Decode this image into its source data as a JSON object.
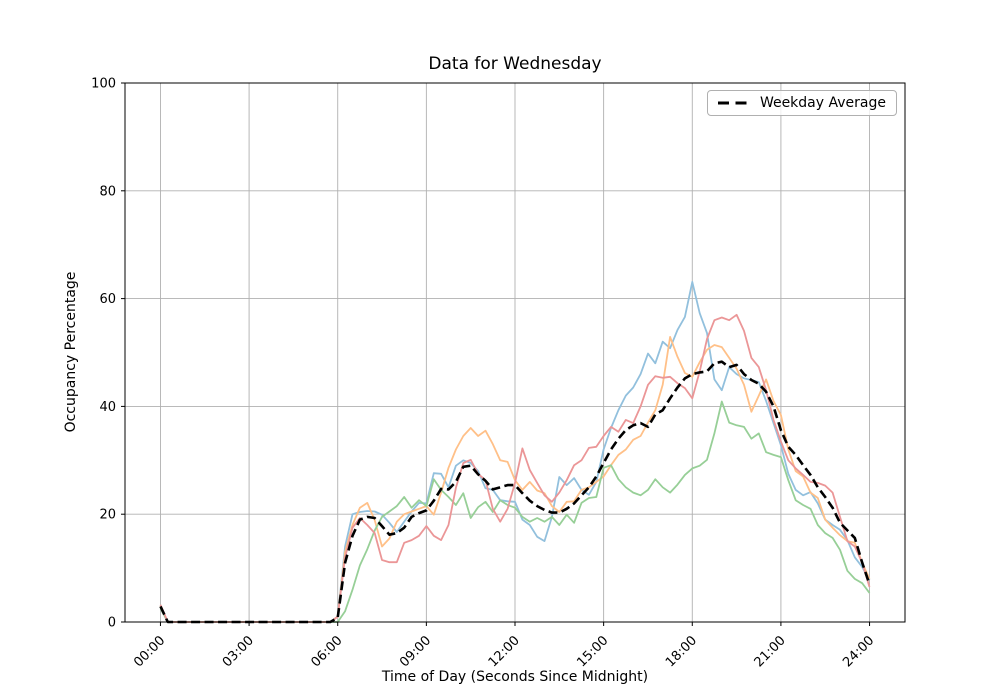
{
  "chart_data": {
    "type": "line",
    "title": "Data for Wednesday",
    "xlabel": "Time of Day (Seconds Since Midnight)",
    "ylabel": "Occupancy Percentage",
    "ylim": [
      0,
      100
    ],
    "y_ticks": [
      0,
      20,
      40,
      60,
      80,
      100
    ],
    "xlim_seconds": [
      -4320,
      90720
    ],
    "x_ticks": [
      {
        "seconds": 0,
        "label": "00:00"
      },
      {
        "seconds": 10800,
        "label": "03:00"
      },
      {
        "seconds": 21600,
        "label": "06:00"
      },
      {
        "seconds": 32400,
        "label": "09:00"
      },
      {
        "seconds": 43200,
        "label": "12:00"
      },
      {
        "seconds": 54000,
        "label": "15:00"
      },
      {
        "seconds": 64800,
        "label": "18:00"
      },
      {
        "seconds": 75600,
        "label": "21:00"
      },
      {
        "seconds": 86400,
        "label": "24:00"
      }
    ],
    "grid": true,
    "grid_color": "#b0b0b0",
    "spine_color": "#000000",
    "legend": {
      "position": "upper right",
      "entries": [
        {
          "label": "Weekday Average",
          "color": "#000000",
          "line_style": "dashed"
        }
      ]
    },
    "x_hours": [
      0,
      0.25,
      0.5,
      0.75,
      1,
      1.25,
      1.5,
      1.75,
      2,
      2.25,
      2.5,
      2.75,
      3,
      3.25,
      3.5,
      3.75,
      4,
      4.25,
      4.5,
      4.75,
      5,
      5.25,
      5.5,
      5.75,
      6,
      6.25,
      6.5,
      6.75,
      7,
      7.25,
      7.5,
      7.75,
      8,
      8.25,
      8.5,
      8.75,
      9,
      9.25,
      9.5,
      9.75,
      10,
      10.25,
      10.5,
      10.75,
      11,
      11.25,
      11.5,
      11.75,
      12,
      12.25,
      12.5,
      12.75,
      13,
      13.25,
      13.5,
      13.75,
      14,
      14.25,
      14.5,
      14.75,
      15,
      15.25,
      15.5,
      15.75,
      16,
      16.25,
      16.5,
      16.75,
      17,
      17.25,
      17.5,
      17.75,
      18,
      18.25,
      18.5,
      18.75,
      19,
      19.25,
      19.5,
      19.75,
      20,
      20.25,
      20.5,
      20.75,
      21,
      21.25,
      21.5,
      21.75,
      22,
      22.25,
      22.5,
      22.75,
      23,
      23.25,
      23.5,
      23.75,
      24
    ],
    "series": [
      {
        "name": "line-1",
        "color": "#92c0dd",
        "line_style": "solid",
        "line_width": 1.8,
        "values": [
          2.8,
          0,
          0,
          0,
          0,
          0,
          0,
          0,
          0,
          0,
          0,
          0,
          0,
          0,
          0,
          0,
          0,
          0,
          0,
          0,
          0,
          0,
          0,
          0,
          1,
          14,
          20,
          20.4,
          20.6,
          20.5,
          19.9,
          18.4,
          16.7,
          18.6,
          20.5,
          22.1,
          22,
          27.6,
          27.5,
          25,
          29,
          30,
          29.5,
          28,
          24.8,
          24.5,
          22.6,
          22.4,
          22.3,
          19,
          18,
          15.8,
          15,
          19.5,
          26.9,
          25.4,
          26.7,
          24.5,
          23.6,
          26,
          32,
          36,
          39.3,
          42,
          43.5,
          46,
          49.8,
          48,
          52,
          50.8,
          54.2,
          56.6,
          63.1,
          57.3,
          53.6,
          45,
          43,
          47.3,
          46,
          45.2,
          44.9,
          44.5,
          41,
          36.9,
          32.8,
          27.5,
          24.5,
          23.5,
          24.1,
          22,
          19,
          18,
          17.1,
          15.2,
          12,
          10.2,
          7.8
        ]
      },
      {
        "name": "line-2",
        "color": "#ffc088",
        "line_style": "solid",
        "line_width": 1.8,
        "values": [
          3,
          0,
          0,
          0,
          0,
          0,
          0,
          0,
          0,
          0,
          0,
          0,
          0,
          0,
          0,
          0,
          0,
          0,
          0,
          0,
          0,
          0,
          0,
          0,
          1,
          13,
          18,
          21.2,
          22.1,
          18.9,
          14,
          15.5,
          18.6,
          20,
          20.5,
          21,
          21.5,
          19.9,
          24,
          28.6,
          32,
          34.5,
          36,
          34.5,
          35.5,
          33,
          30,
          29.7,
          26.3,
          24.5,
          26,
          24.4,
          23.9,
          21.5,
          20.4,
          22.3,
          22.4,
          24.5,
          25,
          26,
          27,
          29.1,
          31,
          32,
          33.8,
          34.5,
          37,
          39.3,
          44,
          52.9,
          49.2,
          46.2,
          45.5,
          48.2,
          50.5,
          51.4,
          51,
          49,
          47,
          44,
          39,
          42,
          45,
          41,
          38.4,
          32,
          28,
          27,
          24,
          23,
          19,
          17.5,
          16.1,
          15,
          14.7,
          11,
          8
        ]
      },
      {
        "name": "line-3",
        "color": "#97cf97",
        "line_style": "solid",
        "line_width": 1.8,
        "values": [
          2.5,
          0,
          0,
          0,
          0,
          0,
          0,
          0,
          0,
          0,
          0,
          0,
          0,
          0,
          0,
          0,
          0,
          0,
          0,
          0,
          0,
          0,
          0,
          0,
          0,
          2,
          6,
          10.5,
          13.5,
          17,
          19.5,
          20.5,
          21.5,
          23.2,
          21.2,
          22.6,
          21.5,
          26.5,
          24.5,
          23.2,
          21.7,
          23.9,
          19.3,
          21.3,
          22.3,
          20.4,
          22.6,
          21.7,
          21.2,
          19.5,
          18.6,
          19.3,
          18.6,
          19.5,
          18,
          19.9,
          18.4,
          22.1,
          23,
          23.2,
          28.6,
          29.1,
          26.5,
          25,
          24,
          23.5,
          24.5,
          26.5,
          25,
          24,
          25.5,
          27.3,
          28.5,
          29,
          30.1,
          35,
          40.9,
          37,
          36.5,
          36.2,
          34,
          35,
          31.5,
          31,
          30.6,
          26.3,
          22.6,
          21.7,
          21,
          18,
          16.5,
          15.6,
          13.4,
          9.5,
          8,
          7.2,
          5.4
        ]
      },
      {
        "name": "line-4",
        "color": "#eb9697",
        "line_style": "solid",
        "line_width": 1.8,
        "values": [
          3.2,
          0,
          0,
          0,
          0,
          0,
          0,
          0,
          0,
          0,
          0,
          0,
          0,
          0,
          0,
          0,
          0,
          0,
          0,
          0,
          0,
          0,
          0,
          0,
          1,
          12,
          17.5,
          19.3,
          18,
          16.5,
          11.5,
          11.1,
          11.1,
          14.7,
          15.2,
          16,
          17.8,
          16,
          15.2,
          18,
          24.9,
          29.5,
          30.1,
          27.5,
          26.3,
          21,
          18.6,
          21,
          25.8,
          32.2,
          28.2,
          25.8,
          23.5,
          22.3,
          24,
          26.3,
          29.1,
          30,
          32.3,
          32.5,
          34.5,
          36.2,
          35.3,
          37.5,
          36.9,
          40,
          44,
          45.6,
          45.3,
          45.5,
          44.3,
          43.4,
          41.5,
          46.5,
          52.5,
          56,
          56.5,
          56,
          57,
          54,
          49,
          47.3,
          43,
          37.5,
          33.5,
          30,
          28.5,
          27.3,
          26,
          25.8,
          25.3,
          24,
          19.5,
          15,
          14,
          11,
          6.5
        ]
      },
      {
        "name": "Weekday Average",
        "color": "#000000",
        "line_style": "dashed",
        "line_width": 2.6,
        "values": [
          2.9,
          0,
          0,
          0,
          0,
          0,
          0,
          0,
          0,
          0,
          0,
          0,
          0,
          0,
          0,
          0,
          0,
          0,
          0,
          0,
          0,
          0,
          0,
          0,
          0.8,
          11,
          16,
          19,
          19.5,
          19.3,
          17.8,
          16.2,
          16.5,
          17.5,
          19.5,
          20.2,
          20.7,
          22.5,
          24.7,
          24.6,
          26,
          28.8,
          29,
          27.4,
          26.2,
          24.6,
          25,
          25.4,
          25.4,
          23.9,
          22.5,
          21.5,
          20.8,
          20.3,
          20.3,
          21,
          22,
          23.5,
          25,
          27,
          29.5,
          32,
          34,
          35.6,
          36.5,
          36.9,
          36.2,
          38.5,
          39.3,
          41.5,
          43.5,
          45.2,
          46,
          46.3,
          46.5,
          48,
          48.3,
          47.3,
          47.7,
          46,
          44.9,
          44.2,
          42.7,
          40,
          35.6,
          32.5,
          31,
          29.1,
          27.3,
          25,
          23.2,
          21.2,
          18.4,
          17,
          15.6,
          11,
          7
        ]
      }
    ]
  }
}
